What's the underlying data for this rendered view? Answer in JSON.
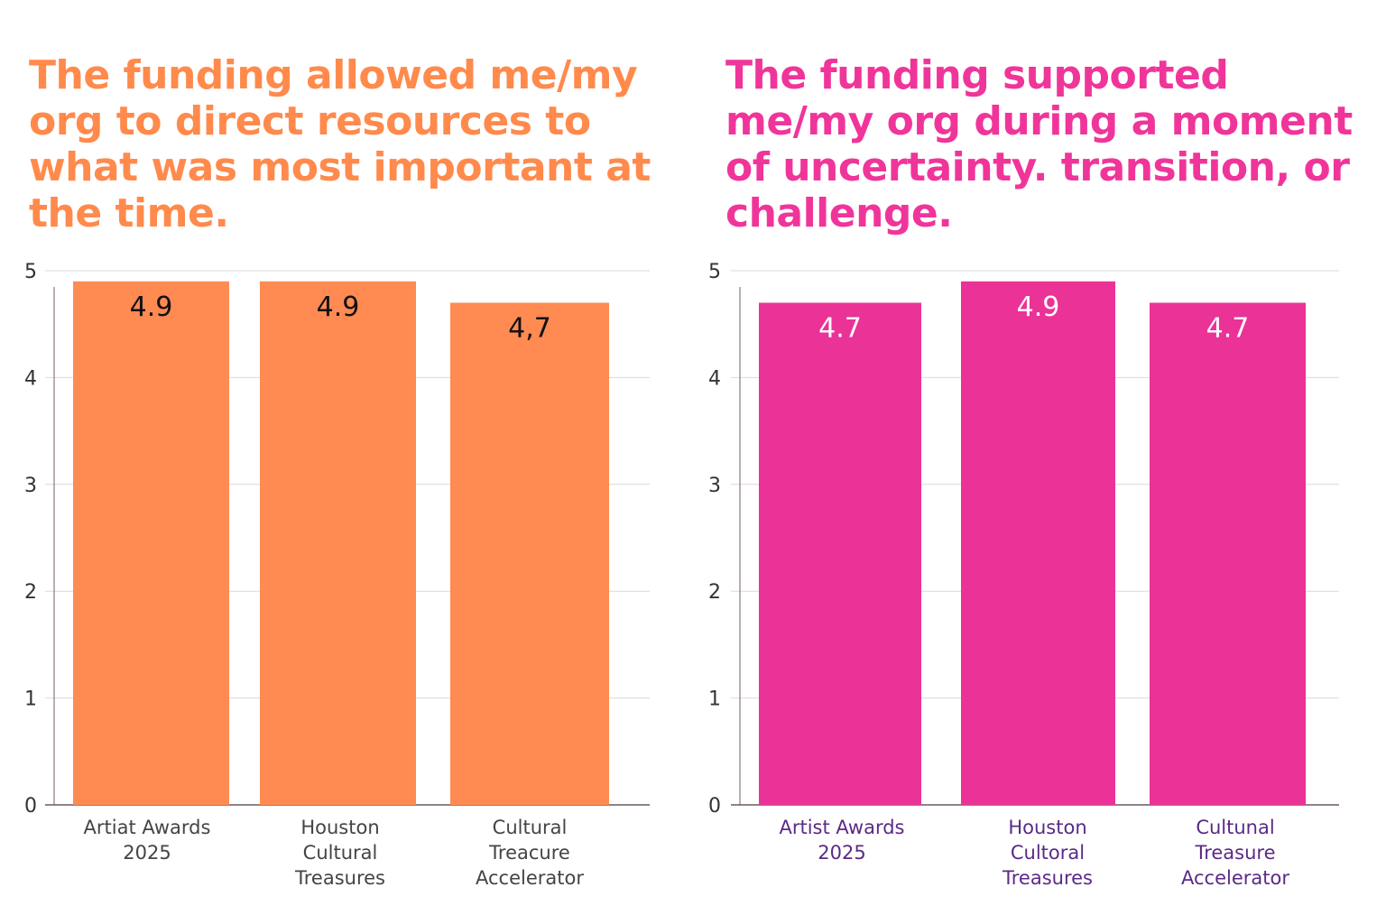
{
  "chart_data": [
    {
      "type": "bar",
      "title": "The funding allowed me/my org to direct resources to what was most important at the time.",
      "categories": [
        [
          "Artiat Awards",
          "2025"
        ],
        [
          "Houston",
          "Cultural",
          "Treasures"
        ],
        [
          "Cultural",
          "Treacure",
          "Accelerator"
        ]
      ],
      "values": [
        4.9,
        4.9,
        4.7
      ],
      "data_labels": [
        "4.9",
        "4.9",
        "4,7"
      ],
      "yticks": [
        "0",
        "1",
        "2",
        "3",
        "4",
        "5"
      ],
      "ylim": [
        0,
        5
      ],
      "grid": true,
      "legend": "none",
      "colors": {
        "title": "#ff8a4c",
        "bar": "#ff8a52",
        "data_label": "#111111",
        "category_label": "#444444"
      }
    },
    {
      "type": "bar",
      "title": "The funding supported me/my org during a moment of uncertainty. transition, or challenge.",
      "categories": [
        [
          "Artist Awards",
          "2025"
        ],
        [
          "Houston",
          "Cultoral",
          "Treasures"
        ],
        [
          "Cultunal",
          "Treasure",
          "Accelerator"
        ]
      ],
      "values": [
        4.7,
        4.9,
        4.7
      ],
      "data_labels": [
        "4.7",
        "4.9",
        "4.7"
      ],
      "yticks": [
        "0",
        "1",
        "2",
        "3",
        "4",
        "5"
      ],
      "ylim": [
        0,
        5
      ],
      "grid": true,
      "legend": "none",
      "colors": {
        "title": "#f0359a",
        "bar": "#eb3297",
        "data_label": "#ffffff",
        "category_label": "#5b2a86"
      }
    }
  ]
}
